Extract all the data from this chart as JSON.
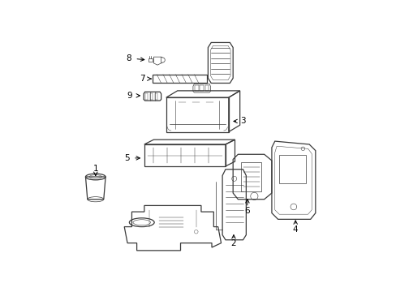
{
  "background_color": "#ffffff",
  "line_color": "#3a3a3a",
  "label_color": "#000000",
  "figsize": [
    4.89,
    3.6
  ],
  "dpi": 100,
  "lw_main": 0.9,
  "lw_thin": 0.5,
  "label_fontsize": 7.5
}
